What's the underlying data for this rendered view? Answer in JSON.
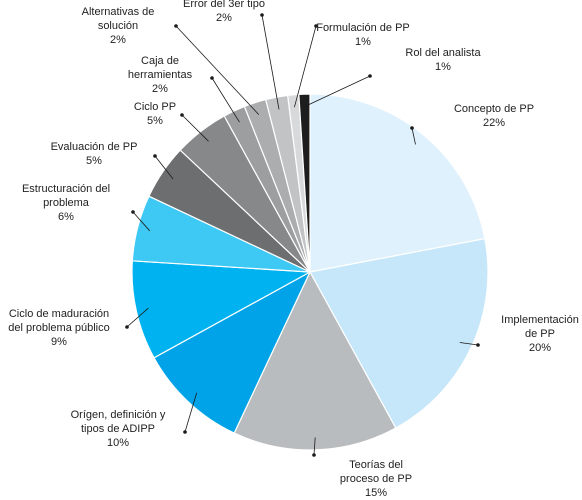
{
  "chart_data": {
    "type": "pie",
    "title": "",
    "unit": "%",
    "slices": [
      {
        "lines": [
          "Concepto de PP",
          "22%"
        ],
        "value": 22,
        "color": "#dff1fc"
      },
      {
        "lines": [
          "Implementación",
          "de PP",
          "20%"
        ],
        "value": 20,
        "color": "#c6e7fa"
      },
      {
        "lines": [
          "Teorías del",
          "proceso de PP",
          "15%"
        ],
        "value": 15,
        "color": "#b9bcbf"
      },
      {
        "lines": [
          "Orígen, definición y",
          "tipos de ADIPP",
          "10%"
        ],
        "value": 10,
        "color": "#00a3e8"
      },
      {
        "lines": [
          "Ciclo de maduración",
          "del problema público",
          "9%"
        ],
        "value": 9,
        "color": "#00b3f0"
      },
      {
        "lines": [
          "Estructuración del",
          "problema",
          "6%"
        ],
        "value": 6,
        "color": "#3ec8f4"
      },
      {
        "lines": [
          "Evaluación de PP",
          "5%"
        ],
        "value": 5,
        "color": "#6d6e70"
      },
      {
        "lines": [
          "Ciclo PP",
          "5%"
        ],
        "value": 5,
        "color": "#87888a"
      },
      {
        "lines": [
          "Caja de",
          "herramientas",
          "2%"
        ],
        "value": 2,
        "color": "#9d9ea0"
      },
      {
        "lines": [
          "Alternativas de",
          "solución",
          "2%"
        ],
        "value": 2,
        "color": "#acadaf"
      },
      {
        "lines": [
          "Error del 3er tipo",
          "2%"
        ],
        "value": 2,
        "color": "#c2c3c5"
      },
      {
        "lines": [
          "Formulación de PP",
          "1%"
        ],
        "value": 1,
        "color": "#d8d9da"
      },
      {
        "lines": [
          "Rol del analista",
          "1%"
        ],
        "value": 1,
        "color": "#1d1d1d"
      }
    ]
  }
}
